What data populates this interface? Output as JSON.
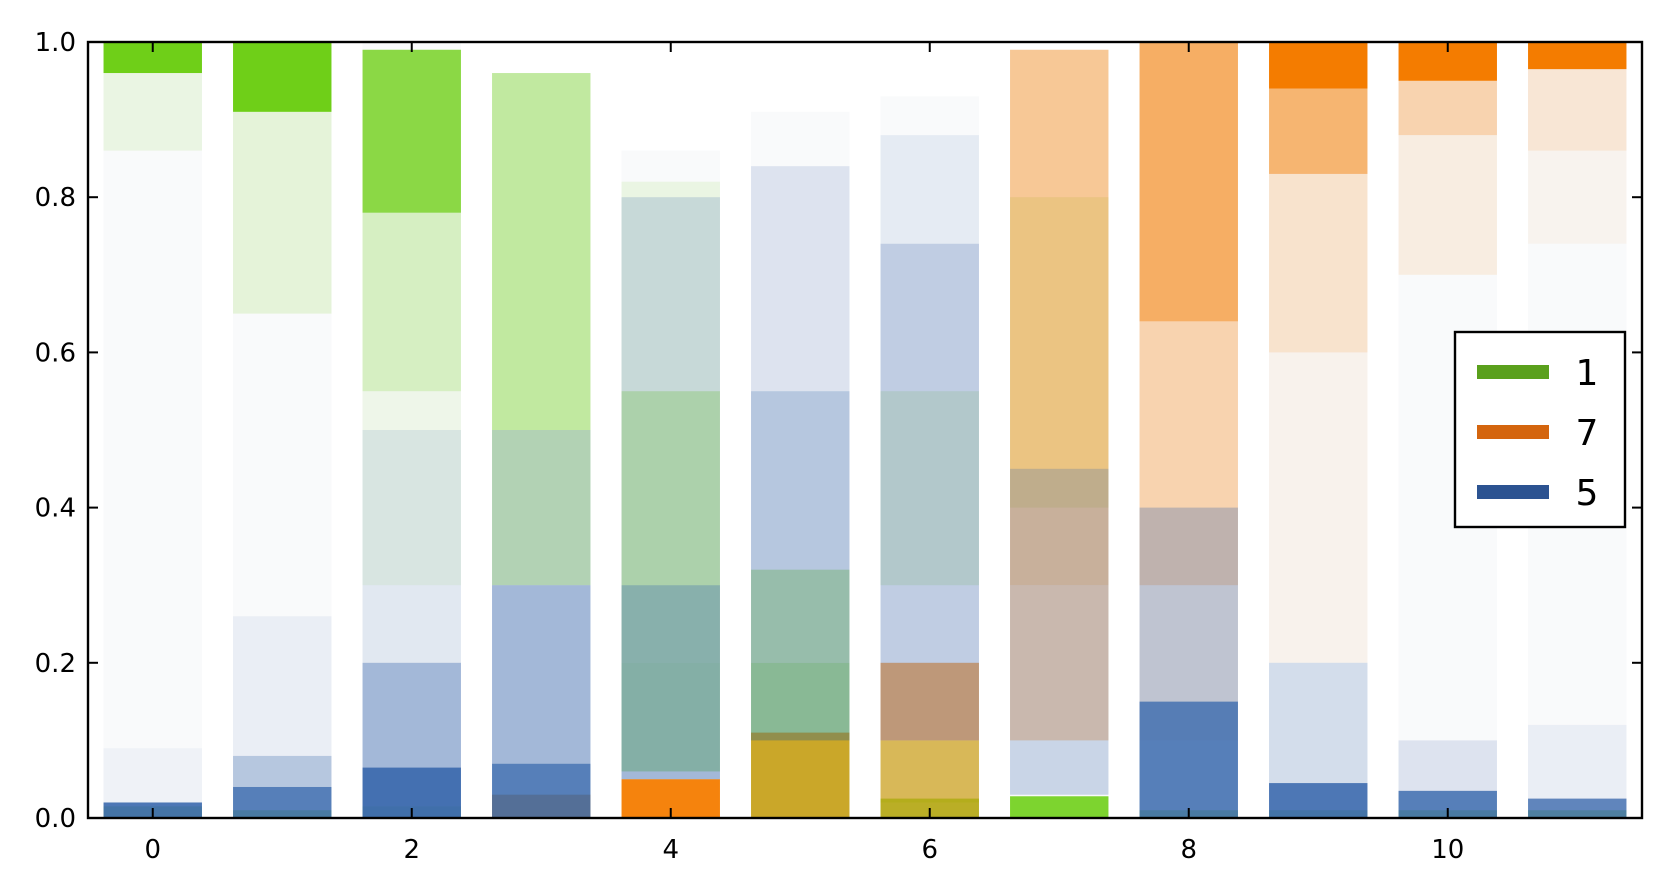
{
  "chart_data": {
    "type": "bar",
    "title": "",
    "xlabel": "",
    "ylabel": "",
    "xlim": [
      -0.5,
      11.5
    ],
    "ylim": [
      0,
      1.0
    ],
    "xticks": [
      "0",
      "2",
      "4",
      "6",
      "8",
      "10"
    ],
    "xtick_values": [
      0,
      2,
      4,
      6,
      8,
      10
    ],
    "yticks": [
      "0.0",
      "0.2",
      "0.4",
      "0.6",
      "0.8",
      "1.0"
    ],
    "ytick_values": [
      0.0,
      0.2,
      0.4,
      0.6,
      0.8,
      1.0
    ],
    "grid": false,
    "legend_position": "center-right",
    "categories": [
      0,
      1,
      2,
      3,
      4,
      5,
      6,
      7,
      8,
      9,
      10,
      11
    ],
    "bar_tops": [
      1.0,
      1.0,
      1.0,
      0.96,
      0.86,
      0.91,
      0.93,
      0.99,
      1.0,
      1.0,
      1.0,
      1.0
    ],
    "series": [
      {
        "name": "1",
        "color": "#5aa01c",
        "bar_color": "#6fcf18",
        "bands": [
          [
            [
              0.96,
              1.0,
              1.0
            ],
            [
              0.86,
              0.96,
              0.1
            ],
            [
              0.0,
              0.015,
              0.6
            ]
          ],
          [
            [
              0.91,
              1.0,
              1.0
            ],
            [
              0.65,
              0.91,
              0.15
            ],
            [
              0.0,
              0.01,
              0.6
            ]
          ],
          [
            [
              0.78,
              0.99,
              0.8
            ],
            [
              0.55,
              0.78,
              0.25
            ],
            [
              0.3,
              0.55,
              0.08
            ],
            [
              0.0,
              0.015,
              0.6
            ]
          ],
          [
            [
              0.5,
              0.96,
              0.4
            ],
            [
              0.3,
              0.5,
              0.3
            ],
            [
              0.0,
              0.03,
              0.5
            ]
          ],
          [
            [
              0.55,
              0.82,
              0.1
            ],
            [
              0.2,
              0.55,
              0.35
            ],
            [
              0.06,
              0.2,
              0.4
            ]
          ],
          [
            [
              0.2,
              0.32,
              0.35
            ],
            [
              0.1,
              0.2,
              0.5
            ],
            [
              0.0,
              0.11,
              0.7
            ]
          ],
          [
            [
              0.3,
              0.55,
              0.15
            ],
            [
              0.02,
              0.1,
              0.4
            ],
            [
              0.0,
              0.025,
              0.8
            ]
          ],
          [
            [
              0.4,
              0.8,
              0.15
            ],
            [
              0.0,
              0.028,
              0.9
            ]
          ],
          [
            [
              0.0,
              0.01,
              0.6
            ]
          ],
          [
            [
              0.0,
              0.01,
              0.6
            ]
          ],
          [
            [
              0.0,
              0.01,
              0.6
            ]
          ],
          [
            [
              0.0,
              0.01,
              0.6
            ]
          ]
        ]
      },
      {
        "name": "7",
        "color": "#d4650e",
        "bar_color": "#f47c00",
        "bands": [
          [],
          [],
          [],
          [
            [
              0.0,
              0.03,
              0.8
            ]
          ],
          [
            [
              0.0,
              0.05,
              0.95
            ]
          ],
          [
            [
              0.0,
              0.11,
              0.55
            ]
          ],
          [
            [
              0.1,
              0.2,
              0.6
            ],
            [
              0.0,
              0.1,
              0.45
            ]
          ],
          [
            [
              0.3,
              0.99,
              0.4
            ],
            [
              0.1,
              0.3,
              0.3
            ]
          ],
          [
            [
              0.64,
              1.0,
              0.6
            ],
            [
              0.3,
              0.64,
              0.3
            ],
            [
              0.1,
              0.3,
              0.1
            ]
          ],
          [
            [
              0.94,
              1.0,
              1.0
            ],
            [
              0.83,
              0.94,
              0.55
            ],
            [
              0.6,
              0.83,
              0.18
            ],
            [
              0.2,
              0.6,
              0.06
            ]
          ],
          [
            [
              0.95,
              1.0,
              1.0
            ],
            [
              0.88,
              0.95,
              0.3
            ],
            [
              0.7,
              0.88,
              0.1
            ]
          ],
          [
            [
              0.965,
              1.0,
              1.0
            ],
            [
              0.86,
              0.965,
              0.15
            ],
            [
              0.74,
              0.86,
              0.05
            ]
          ]
        ]
      },
      {
        "name": "5",
        "color": "#2c5391",
        "bar_color": "#3a68ad",
        "bands": [
          [
            [
              0.0,
              0.02,
              0.9
            ],
            [
              0.02,
              0.09,
              0.05
            ]
          ],
          [
            [
              0.0,
              0.04,
              0.85
            ],
            [
              0.04,
              0.08,
              0.35
            ],
            [
              0.08,
              0.26,
              0.08
            ]
          ],
          [
            [
              0.0,
              0.065,
              0.95
            ],
            [
              0.065,
              0.2,
              0.45
            ],
            [
              0.2,
              0.5,
              0.12
            ]
          ],
          [
            [
              0.0,
              0.07,
              0.85
            ],
            [
              0.07,
              0.3,
              0.45
            ],
            [
              0.3,
              0.5,
              0.2
            ]
          ],
          [
            [
              0.05,
              0.3,
              0.45
            ],
            [
              0.3,
              0.8,
              0.2
            ]
          ],
          [
            [
              0.1,
              0.55,
              0.35
            ],
            [
              0.55,
              0.84,
              0.15
            ]
          ],
          [
            [
              0.1,
              0.74,
              0.3
            ],
            [
              0.74,
              0.88,
              0.1
            ]
          ],
          [
            [
              0.03,
              0.45,
              0.25
            ]
          ],
          [
            [
              0.0,
              0.15,
              0.85
            ],
            [
              0.15,
              0.4,
              0.3
            ]
          ],
          [
            [
              0.0,
              0.045,
              0.9
            ],
            [
              0.045,
              0.2,
              0.2
            ]
          ],
          [
            [
              0.0,
              0.035,
              0.85
            ],
            [
              0.035,
              0.1,
              0.15
            ]
          ],
          [
            [
              0.0,
              0.025,
              0.8
            ],
            [
              0.025,
              0.12,
              0.08
            ]
          ]
        ]
      }
    ]
  }
}
